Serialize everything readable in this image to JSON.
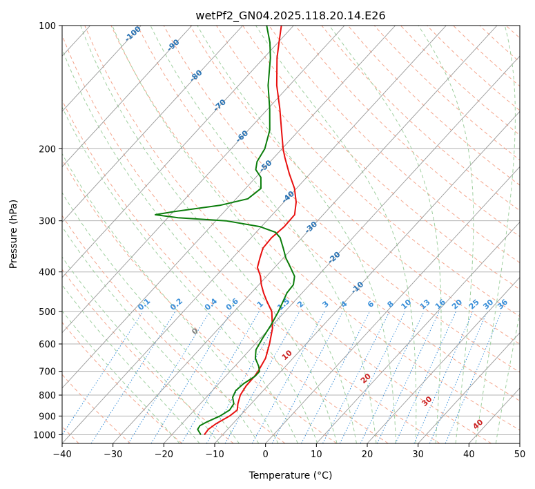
{
  "chart_data": {
    "type": "line",
    "subtype": "skew-t log-p",
    "title": "wetPf2_GN04.2025.118.20.14.E26",
    "xlabel": "Temperature (°C)",
    "ylabel": "Pressure (hPa)",
    "xlim": [
      -40,
      50
    ],
    "ylim": [
      1050,
      100
    ],
    "y_scale": "log",
    "x_ticks": [
      -40,
      -30,
      -20,
      -10,
      0,
      10,
      20,
      30,
      40,
      50
    ],
    "x_tick_labels": [
      "−40",
      "−30",
      "−20",
      "−10",
      "0",
      "10",
      "20",
      "30",
      "40",
      "50"
    ],
    "y_ticks": [
      1000,
      900,
      800,
      700,
      600,
      500,
      400,
      300,
      200,
      100
    ],
    "y_tick_labels": [
      "1000",
      "900",
      "800",
      "700",
      "600",
      "500",
      "400",
      "300",
      "200",
      "100"
    ],
    "grid": true,
    "colors": {
      "temperature": "#e8100f",
      "dewpoint": "#0b7d0b",
      "isotherm": "#999999",
      "dry_adiabat": "#f4a58c",
      "moist_adiabat": "#9fcf9f",
      "mixing_ratio": "#3a8fd8",
      "isotherm_label": "#2872b4",
      "mixing_label": "#3a8fd8",
      "moist_label": "#cc2222",
      "zero_label": "#808080"
    },
    "series": [
      {
        "key": "temperature",
        "points": [
          {
            "p": 1000,
            "t": -13.6
          },
          {
            "p": 970,
            "t": -13.8
          },
          {
            "p": 940,
            "t": -13.3
          },
          {
            "p": 900,
            "t": -12.0
          },
          {
            "p": 870,
            "t": -11.6
          },
          {
            "p": 840,
            "t": -12.6
          },
          {
            "p": 800,
            "t": -13.7
          },
          {
            "p": 760,
            "t": -14.2
          },
          {
            "p": 720,
            "t": -14.3
          },
          {
            "p": 700,
            "t": -14.5
          },
          {
            "p": 650,
            "t": -15.4
          },
          {
            "p": 600,
            "t": -17.2
          },
          {
            "p": 550,
            "t": -19.4
          },
          {
            "p": 500,
            "t": -22.6
          },
          {
            "p": 470,
            "t": -25.6
          },
          {
            "p": 450,
            "t": -27.6
          },
          {
            "p": 430,
            "t": -29.5
          },
          {
            "p": 410,
            "t": -31.2
          },
          {
            "p": 390,
            "t": -33.4
          },
          {
            "p": 370,
            "t": -34.6
          },
          {
            "p": 350,
            "t": -35.8
          },
          {
            "p": 330,
            "t": -36.0
          },
          {
            "p": 310,
            "t": -35.5
          },
          {
            "p": 290,
            "t": -35.6
          },
          {
            "p": 270,
            "t": -37.6
          },
          {
            "p": 250,
            "t": -40.4
          },
          {
            "p": 230,
            "t": -44.1
          },
          {
            "p": 210,
            "t": -47.9
          },
          {
            "p": 200,
            "t": -49.8
          },
          {
            "p": 180,
            "t": -53.5
          },
          {
            "p": 160,
            "t": -57.6
          },
          {
            "p": 140,
            "t": -62.5
          },
          {
            "p": 120,
            "t": -67.4
          },
          {
            "p": 110,
            "t": -69.8
          },
          {
            "p": 100,
            "t": -72.4
          }
        ]
      },
      {
        "key": "dewpoint",
        "points": [
          {
            "p": 1000,
            "t": -14.3
          },
          {
            "p": 970,
            "t": -15.9
          },
          {
            "p": 950,
            "t": -16.1
          },
          {
            "p": 930,
            "t": -15.4
          },
          {
            "p": 900,
            "t": -13.9
          },
          {
            "p": 870,
            "t": -13.1
          },
          {
            "p": 840,
            "t": -13.4
          },
          {
            "p": 810,
            "t": -14.8
          },
          {
            "p": 780,
            "t": -15.4
          },
          {
            "p": 750,
            "t": -15.1
          },
          {
            "p": 720,
            "t": -14.2
          },
          {
            "p": 700,
            "t": -14.2
          },
          {
            "p": 680,
            "t": -15.3
          },
          {
            "p": 650,
            "t": -17.4
          },
          {
            "p": 620,
            "t": -18.8
          },
          {
            "p": 580,
            "t": -19.6
          },
          {
            "p": 540,
            "t": -20.3
          },
          {
            "p": 500,
            "t": -21.3
          },
          {
            "p": 470,
            "t": -22.3
          },
          {
            "p": 450,
            "t": -23.0
          },
          {
            "p": 430,
            "t": -23.2
          },
          {
            "p": 410,
            "t": -24.5
          },
          {
            "p": 390,
            "t": -26.9
          },
          {
            "p": 370,
            "t": -29.5
          },
          {
            "p": 350,
            "t": -31.8
          },
          {
            "p": 330,
            "t": -34.3
          },
          {
            "p": 320,
            "t": -36.2
          },
          {
            "p": 310,
            "t": -40.3
          },
          {
            "p": 300,
            "t": -48.0
          },
          {
            "p": 295,
            "t": -58.0
          },
          {
            "p": 290,
            "t": -63.0
          },
          {
            "p": 285,
            "t": -60.0
          },
          {
            "p": 275,
            "t": -52.0
          },
          {
            "p": 265,
            "t": -47.7
          },
          {
            "p": 250,
            "t": -47.0
          },
          {
            "p": 235,
            "t": -49.0
          },
          {
            "p": 225,
            "t": -51.4
          },
          {
            "p": 215,
            "t": -52.6
          },
          {
            "p": 200,
            "t": -53.4
          },
          {
            "p": 180,
            "t": -55.8
          },
          {
            "p": 160,
            "t": -59.6
          },
          {
            "p": 140,
            "t": -64.2
          },
          {
            "p": 120,
            "t": -68.7
          },
          {
            "p": 110,
            "t": -71.6
          },
          {
            "p": 100,
            "t": -75.3
          }
        ]
      }
    ],
    "isotherm_labels": [
      {
        "text": "-100",
        "t": -100
      },
      {
        "text": "-90",
        "t": -90
      },
      {
        "text": "-80",
        "t": -80
      },
      {
        "text": "-70",
        "t": -70
      },
      {
        "text": "-60",
        "t": -60
      },
      {
        "text": "-50",
        "t": -50
      },
      {
        "text": "-40",
        "t": -40
      },
      {
        "text": "-30",
        "t": -30
      },
      {
        "text": "-20",
        "t": -20
      },
      {
        "text": "-10",
        "t": -10
      }
    ],
    "mixing_ratio_labels": [
      {
        "text": "0.1",
        "w": 0.1
      },
      {
        "text": "0.2",
        "w": 0.2
      },
      {
        "text": "0.4",
        "w": 0.4
      },
      {
        "text": "0.6",
        "w": 0.6
      },
      {
        "text": "1",
        "w": 1
      },
      {
        "text": "1.5",
        "w": 1.5
      },
      {
        "text": "2",
        "w": 2
      },
      {
        "text": "3",
        "w": 3
      },
      {
        "text": "4",
        "w": 4
      },
      {
        "text": "6",
        "w": 6
      },
      {
        "text": "8",
        "w": 8
      },
      {
        "text": "10",
        "w": 10
      },
      {
        "text": "13",
        "w": 13
      },
      {
        "text": "16",
        "w": 16
      },
      {
        "text": "20",
        "w": 20
      },
      {
        "text": "25",
        "w": 25
      },
      {
        "text": "30",
        "w": 30
      },
      {
        "text": "36",
        "w": 36
      }
    ],
    "moist_adiabat_labels": [
      {
        "text": "0",
        "theta_w": 0
      },
      {
        "text": "10",
        "theta_w": 10
      },
      {
        "text": "20",
        "theta_w": 20
      },
      {
        "text": "30",
        "theta_w": 30
      },
      {
        "text": "40",
        "theta_w": 40
      }
    ]
  }
}
